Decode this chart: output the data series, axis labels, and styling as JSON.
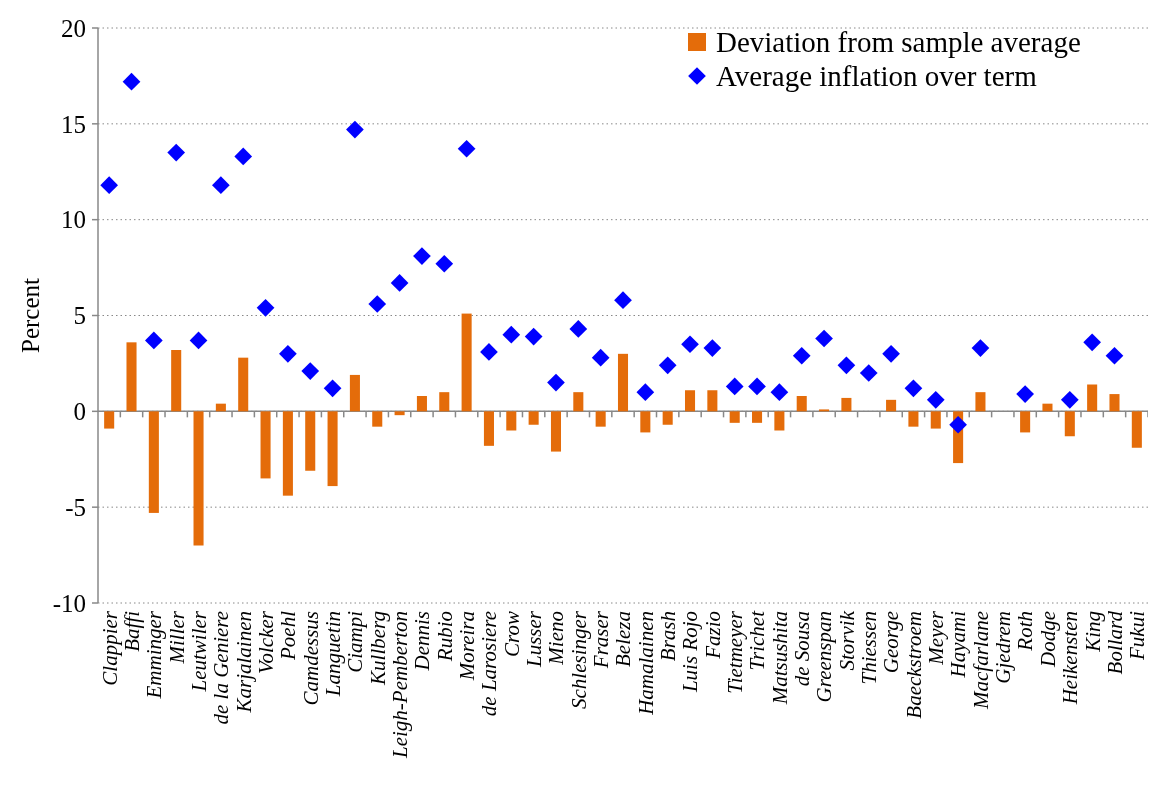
{
  "chart_data": {
    "type": "bar",
    "ylabel": "Percent",
    "categories": [
      "Clappier",
      "Baffi",
      "Emminger",
      "Miller",
      "Leutwiler",
      "de la Geniere",
      "Karjalainen",
      "Volcker",
      "Poehl",
      "Camdessus",
      "Languetin",
      "Ciampi",
      "Kullberg",
      "Leigh-Pemberton",
      "Dennis",
      "Rubio",
      "Moreira",
      "de Larosiere",
      "Crow",
      "Lusser",
      "Mieno",
      "Schlesinger",
      "Fraser",
      "Beleza",
      "Hamalainen",
      "Brash",
      "Luis Rojo",
      "Fazio",
      "Tietmeyer",
      "Trichet",
      "Matsushita",
      "de Sousa",
      "Greenspan",
      "Storvik",
      "Thiessen",
      "George",
      "Baeckstroem",
      "Meyer",
      "Hayami",
      "Macfarlane",
      "Gjedrem",
      "Roth",
      "Dodge",
      "Heikensten",
      "King",
      "Bollard",
      "Fukui"
    ],
    "series": [
      {
        "name": "Deviation from sample average",
        "color": "#e46c0a",
        "values": [
          -0.9,
          3.6,
          -5.3,
          3.2,
          -7.0,
          0.4,
          2.8,
          -3.5,
          -4.4,
          -3.1,
          -3.9,
          1.9,
          -0.8,
          -0.2,
          0.8,
          1.0,
          5.1,
          -1.8,
          -1.0,
          -0.7,
          -2.1,
          1.0,
          -0.8,
          3.0,
          -1.1,
          -0.7,
          1.1,
          1.1,
          -0.6,
          -0.6,
          -1.0,
          0.8,
          0.1,
          0.7,
          null,
          0.6,
          -0.8,
          -0.9,
          -2.7,
          1.0,
          null,
          -1.1,
          0.4,
          -1.3,
          1.4,
          0.9,
          -1.9
        ]
      },
      {
        "name": "Average inflation over term",
        "type": "scatter",
        "marker": "diamond",
        "color": "#0000ff",
        "values": [
          11.8,
          17.2,
          3.7,
          13.5,
          3.7,
          11.8,
          13.3,
          5.4,
          3.0,
          2.1,
          1.2,
          14.7,
          5.6,
          6.7,
          8.1,
          7.7,
          13.7,
          3.1,
          4.0,
          3.9,
          1.5,
          4.3,
          2.8,
          5.8,
          1.0,
          2.4,
          3.5,
          3.3,
          1.3,
          1.3,
          1.0,
          2.9,
          3.8,
          2.4,
          2.0,
          3.0,
          1.2,
          0.6,
          -0.7,
          3.3,
          null,
          0.9,
          null,
          0.6,
          3.6,
          2.9,
          null
        ]
      }
    ],
    "ylim": [
      -10,
      20
    ],
    "yticks": [
      -10,
      -5,
      0,
      5,
      10,
      15,
      20
    ],
    "grid": "y",
    "legend": "top right"
  }
}
